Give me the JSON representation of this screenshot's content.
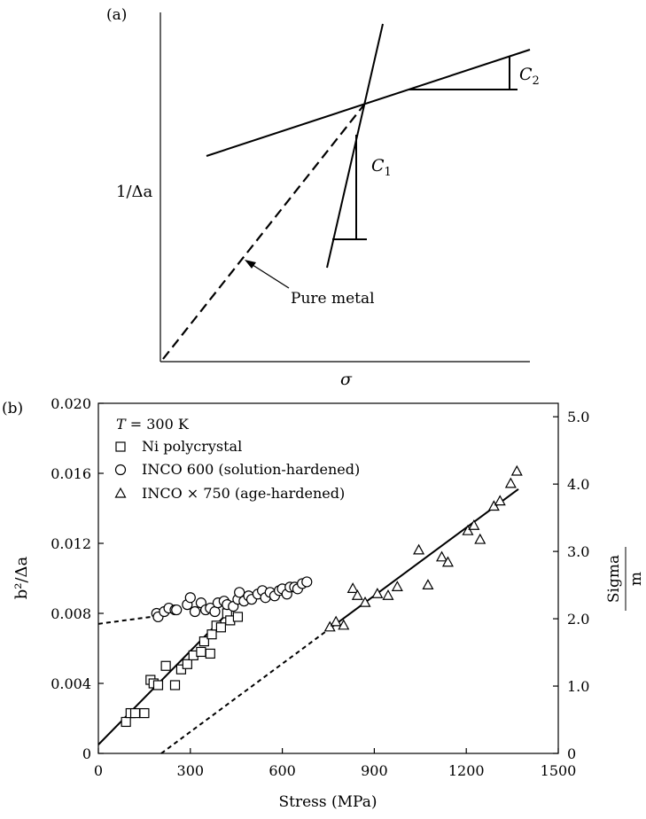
{
  "panel_a": {
    "label": "(a)",
    "ylabel": "1/Δa",
    "xlabel": "σ",
    "annotation": "Pure metal",
    "slope_labels": [
      {
        "base": "C",
        "sub": "2"
      },
      {
        "base": "C",
        "sub": "1"
      }
    ]
  },
  "panel_b": {
    "label": "(b)",
    "legend_title_var": "T",
    "legend_title_rest": " = 300 K",
    "right_axis_label_top": "Sigma",
    "right_axis_label_bottom": "m"
  },
  "chart_data": [
    {
      "type": "line",
      "id": "panel-a",
      "xlabel": "σ",
      "ylabel": "1/Δa",
      "series": [
        {
          "style": "dashed",
          "points": [
            [
              0.01,
              0.01
            ],
            [
              0.52,
              0.7
            ]
          ]
        },
        {
          "style": "solid",
          "points": [
            [
              0.13,
              0.57
            ],
            [
              1.0,
              0.9
            ]
          ]
        },
        {
          "style": "solid",
          "points": [
            [
              0.45,
              0.27
            ],
            [
              0.6,
              0.99
            ]
          ]
        }
      ]
    },
    {
      "type": "scatter",
      "id": "panel-b",
      "xlabel": "Stress (MPa)",
      "ylabel": "b²/Δa",
      "xlim": [
        0,
        1500
      ],
      "ylim": [
        0,
        0.02
      ],
      "xticks": [
        0,
        300,
        600,
        900,
        1200,
        1500
      ],
      "yticks": [
        0,
        0.004,
        0.008,
        0.012,
        0.016,
        0.02
      ],
      "ytick_labels": [
        "0",
        "0.004",
        "0.008",
        "0.012",
        "0.016",
        "0.020"
      ],
      "right_ylim": [
        0,
        5.2
      ],
      "right_yticks": [
        0,
        1.0,
        2.0,
        3.0,
        4.0,
        5.0
      ],
      "right_ytick_labels": [
        "0",
        "1.0",
        "2.0",
        "3.0",
        "4.0",
        "5.0"
      ],
      "legend_position": "top-left",
      "series": [
        {
          "name": "Ni polycrystal",
          "marker": "square",
          "points": [
            [
              90,
              0.0018
            ],
            [
              105,
              0.0023
            ],
            [
              120,
              0.0023
            ],
            [
              150,
              0.0023
            ],
            [
              170,
              0.0042
            ],
            [
              180,
              0.004
            ],
            [
              195,
              0.0039
            ],
            [
              220,
              0.005
            ],
            [
              250,
              0.0039
            ],
            [
              270,
              0.0048
            ],
            [
              290,
              0.0051
            ],
            [
              310,
              0.0056
            ],
            [
              335,
              0.0058
            ],
            [
              345,
              0.0064
            ],
            [
              365,
              0.0057
            ],
            [
              370,
              0.0068
            ],
            [
              385,
              0.0073
            ],
            [
              400,
              0.0072
            ],
            [
              420,
              0.008
            ],
            [
              430,
              0.0076
            ],
            [
              455,
              0.0078
            ]
          ],
          "fit": [
            [
              0,
              0.0005
            ],
            [
              460,
              0.0087
            ]
          ]
        },
        {
          "name": "INCO 600 (solution-hardened)",
          "marker": "circle",
          "points": [
            [
              190,
              0.008
            ],
            [
              195,
              0.0078
            ],
            [
              215,
              0.0081
            ],
            [
              230,
              0.0083
            ],
            [
              250,
              0.0082
            ],
            [
              255,
              0.0082
            ],
            [
              290,
              0.0085
            ],
            [
              300,
              0.0089
            ],
            [
              315,
              0.0081
            ],
            [
              335,
              0.0086
            ],
            [
              350,
              0.0082
            ],
            [
              365,
              0.0083
            ],
            [
              380,
              0.0081
            ],
            [
              390,
              0.0086
            ],
            [
              410,
              0.0087
            ],
            [
              420,
              0.0085
            ],
            [
              440,
              0.0084
            ],
            [
              455,
              0.0088
            ],
            [
              460,
              0.0092
            ],
            [
              475,
              0.0087
            ],
            [
              490,
              0.009
            ],
            [
              500,
              0.0088
            ],
            [
              520,
              0.0091
            ],
            [
              535,
              0.0093
            ],
            [
              545,
              0.0089
            ],
            [
              560,
              0.0092
            ],
            [
              575,
              0.009
            ],
            [
              590,
              0.0093
            ],
            [
              600,
              0.0094
            ],
            [
              615,
              0.0091
            ],
            [
              625,
              0.0095
            ],
            [
              640,
              0.0095
            ],
            [
              650,
              0.0094
            ],
            [
              665,
              0.0097
            ],
            [
              680,
              0.0098
            ]
          ],
          "fit": [
            [
              0,
              0.0074
            ],
            [
              215,
              0.0079
            ]
          ]
        },
        {
          "name": "INCO × 750 (age-hardened)",
          "marker": "triangle",
          "points": [
            [
              755,
              0.0072
            ],
            [
              775,
              0.0075
            ],
            [
              800,
              0.0073
            ],
            [
              830,
              0.0094
            ],
            [
              845,
              0.009
            ],
            [
              870,
              0.0086
            ],
            [
              910,
              0.0091
            ],
            [
              945,
              0.009
            ],
            [
              975,
              0.0095
            ],
            [
              1045,
              0.0116
            ],
            [
              1075,
              0.0096
            ],
            [
              1120,
              0.0112
            ],
            [
              1140,
              0.0109
            ],
            [
              1205,
              0.0127
            ],
            [
              1225,
              0.013
            ],
            [
              1245,
              0.0122
            ],
            [
              1290,
              0.0141
            ],
            [
              1310,
              0.0144
            ],
            [
              1345,
              0.0154
            ],
            [
              1365,
              0.0161
            ]
          ],
          "fit_dashed": [
            [
              205,
              0
            ],
            [
              760,
              0.0072
            ]
          ],
          "fit": [
            [
              760,
              0.0072
            ],
            [
              1370,
              0.0151
            ]
          ]
        }
      ]
    }
  ]
}
